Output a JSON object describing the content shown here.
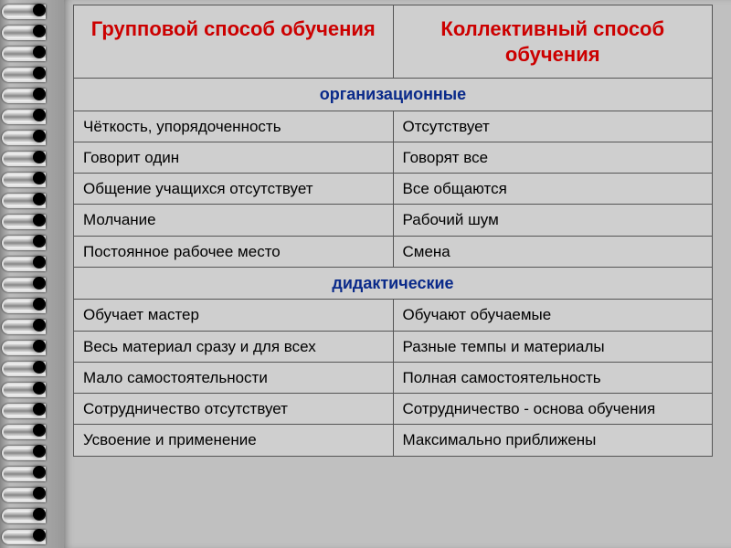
{
  "colors": {
    "header_text": "#cc0000",
    "section_text": "#0a2a8a",
    "body_text": "#222222",
    "table_bg": "#cfcfcf",
    "border": "#555555"
  },
  "table": {
    "headers": {
      "left": "Групповой способ обучения",
      "right": "Коллективный способ обучения"
    },
    "sections": [
      {
        "title": "организационные",
        "rows": [
          {
            "left": "Чёткость, упорядоченность",
            "right": "Отсутствует"
          },
          {
            "left": "Говорит один",
            "right": "Говорят все"
          },
          {
            "left": "Общение учащихся отсутствует",
            "right": "Все общаются"
          },
          {
            "left": "Молчание",
            "right": "Рабочий шум"
          },
          {
            "left": "Постоянное рабочее место",
            "right": "Смена"
          }
        ]
      },
      {
        "title": "дидактические",
        "rows": [
          {
            "left": "Обучает мастер",
            "right": "Обучают обучаемые"
          },
          {
            "left": "Весь материал сразу и для всех",
            "right": "Разные темпы и материалы"
          },
          {
            "left": "Мало самостоятельности",
            "right": "Полная самостоятельность"
          },
          {
            "left": "Сотрудничество отсутствует",
            "right": "Сотрудничество - основа обучения"
          },
          {
            "left": "Усвоение и применение",
            "right": "Максимально приближены"
          }
        ]
      }
    ]
  }
}
